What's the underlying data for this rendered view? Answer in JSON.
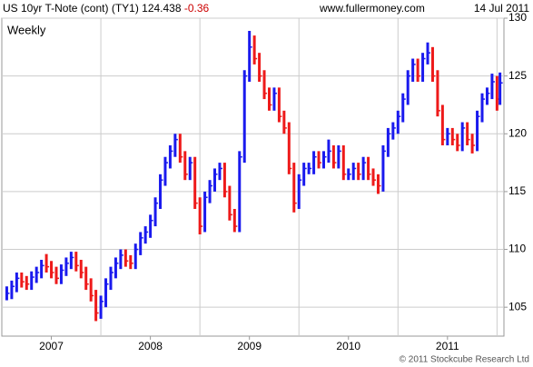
{
  "chart_data": {
    "type": "range_bar",
    "title": "US 10yr T-Note (cont) (TY1) 124.438",
    "change": "-0.36",
    "source": "www.fullermoney.com",
    "date": "14 Jul 2011",
    "period": "Weekly",
    "footer": "© 2011 Stockcube Research Ltd",
    "up_color": "#1a1aee",
    "down_color": "#ee1a1a",
    "change_color": "#cc0000",
    "period_color": "#1a1acc",
    "grid": true,
    "xlim": [
      2006.5,
      2011.57
    ],
    "ylim": [
      102.5,
      130
    ],
    "yticks": [
      105,
      110,
      115,
      120,
      125,
      130
    ],
    "xticks": [
      {
        "value": 2007,
        "label": "2007"
      },
      {
        "value": 2008,
        "label": "2008"
      },
      {
        "value": 2009,
        "label": "2009"
      },
      {
        "value": 2010,
        "label": "2010"
      },
      {
        "value": 2011,
        "label": "2011"
      }
    ],
    "x": [
      2006.55,
      2006.6,
      2006.65,
      2006.7,
      2006.75,
      2006.8,
      2006.85,
      2006.9,
      2006.95,
      2007.0,
      2007.05,
      2007.1,
      2007.15,
      2007.2,
      2007.25,
      2007.3,
      2007.35,
      2007.4,
      2007.45,
      2007.5,
      2007.55,
      2007.6,
      2007.65,
      2007.7,
      2007.75,
      2007.8,
      2007.85,
      2007.9,
      2007.95,
      2008.0,
      2008.05,
      2008.1,
      2008.15,
      2008.2,
      2008.25,
      2008.3,
      2008.35,
      2008.4,
      2008.45,
      2008.5,
      2008.55,
      2008.6,
      2008.65,
      2008.7,
      2008.75,
      2008.8,
      2008.85,
      2008.9,
      2008.95,
      2009.0,
      2009.05,
      2009.1,
      2009.15,
      2009.2,
      2009.25,
      2009.3,
      2009.35,
      2009.4,
      2009.45,
      2009.5,
      2009.55,
      2009.6,
      2009.65,
      2009.7,
      2009.75,
      2009.8,
      2009.85,
      2009.9,
      2009.95,
      2010.0,
      2010.05,
      2010.1,
      2010.15,
      2010.2,
      2010.25,
      2010.3,
      2010.35,
      2010.4,
      2010.45,
      2010.5,
      2010.55,
      2010.6,
      2010.65,
      2010.7,
      2010.75,
      2010.8,
      2010.85,
      2010.9,
      2010.95,
      2011.0,
      2011.05,
      2011.1,
      2011.15,
      2011.2,
      2011.25,
      2011.3,
      2011.35,
      2011.4,
      2011.45,
      2011.5,
      2011.53
    ],
    "close": [
      106.2,
      106.8,
      107.5,
      107.2,
      107.0,
      107.6,
      108.0,
      108.6,
      108.5,
      108.0,
      107.5,
      108.2,
      108.8,
      109.3,
      108.6,
      108.0,
      107.0,
      106.0,
      104.5,
      105.5,
      107.0,
      108.0,
      108.8,
      109.5,
      109.0,
      108.8,
      110.0,
      111.0,
      111.5,
      112.5,
      114.0,
      116.0,
      117.5,
      118.5,
      119.5,
      118.0,
      116.5,
      117.5,
      114.0,
      112.0,
      114.5,
      115.5,
      116.5,
      117.0,
      115.0,
      113.0,
      112.0,
      118.0,
      125.0,
      127.5,
      126.5,
      125.0,
      123.5,
      122.5,
      123.5,
      121.5,
      120.5,
      117.0,
      114.0,
      116.0,
      117.0,
      117.0,
      118.0,
      117.5,
      118.0,
      118.5,
      117.5,
      118.5,
      116.5,
      116.5,
      117.0,
      116.5,
      117.5,
      116.5,
      116.0,
      115.5,
      118.5,
      120.0,
      120.5,
      121.5,
      123.0,
      125.0,
      126.0,
      125.0,
      126.5,
      127.0,
      125.0,
      122.0,
      119.5,
      120.0,
      119.5,
      119.0,
      120.5,
      119.5,
      119.0,
      121.5,
      123.0,
      123.5,
      124.5,
      123.0,
      124.4
    ],
    "low": [
      105.6,
      105.7,
      106.3,
      106.7,
      106.5,
      106.5,
      107.1,
      107.5,
      108.0,
      107.5,
      107.0,
      107.0,
      107.7,
      108.3,
      108.1,
      107.5,
      106.5,
      105.5,
      103.8,
      104.0,
      105.0,
      106.5,
      107.5,
      108.3,
      108.5,
      108.3,
      108.3,
      109.5,
      110.5,
      111.0,
      112.0,
      113.5,
      115.5,
      117.0,
      118.0,
      117.5,
      116.0,
      116.0,
      113.5,
      111.3,
      111.5,
      114.0,
      115.0,
      116.0,
      114.5,
      112.5,
      111.5,
      111.5,
      117.5,
      124.5,
      126.0,
      124.5,
      123.0,
      122.0,
      122.0,
      121.0,
      120.0,
      116.5,
      113.2,
      113.5,
      115.5,
      116.5,
      116.5,
      117.0,
      117.0,
      117.5,
      117.0,
      117.0,
      116.0,
      116.0,
      116.0,
      116.0,
      116.0,
      116.0,
      115.5,
      114.8,
      115.0,
      118.0,
      119.5,
      120.0,
      121.0,
      122.5,
      124.5,
      124.5,
      124.5,
      126.0,
      124.5,
      121.5,
      119.0,
      119.0,
      119.0,
      118.5,
      118.5,
      119.0,
      118.3,
      118.5,
      121.0,
      122.5,
      123.0,
      122.0,
      122.5
    ],
    "high": [
      106.8,
      107.3,
      108.0,
      108.0,
      107.7,
      108.1,
      108.5,
      109.1,
      109.6,
      109.0,
      108.5,
      108.7,
      109.3,
      109.8,
      109.8,
      109.1,
      108.5,
      107.5,
      106.5,
      106.0,
      107.5,
      108.5,
      109.3,
      110.0,
      110.0,
      109.5,
      110.5,
      111.5,
      112.0,
      113.0,
      114.5,
      116.5,
      118.0,
      119.0,
      120.0,
      120.0,
      118.5,
      118.0,
      118.0,
      114.5,
      115.0,
      116.0,
      117.0,
      117.5,
      117.5,
      115.5,
      113.5,
      118.5,
      125.5,
      128.9,
      128.5,
      127.0,
      125.5,
      124.0,
      124.0,
      124.0,
      122.0,
      121.0,
      117.5,
      116.5,
      117.5,
      117.5,
      118.5,
      118.5,
      118.5,
      119.5,
      119.0,
      119.0,
      119.0,
      117.0,
      117.5,
      117.5,
      118.0,
      118.0,
      117.0,
      116.5,
      119.0,
      120.5,
      121.0,
      122.0,
      123.5,
      125.5,
      126.5,
      126.5,
      127.0,
      127.9,
      127.5,
      125.5,
      122.5,
      120.5,
      120.5,
      120.0,
      121.0,
      121.0,
      120.0,
      122.0,
      123.5,
      124.0,
      125.2,
      125.0,
      125.3
    ]
  }
}
